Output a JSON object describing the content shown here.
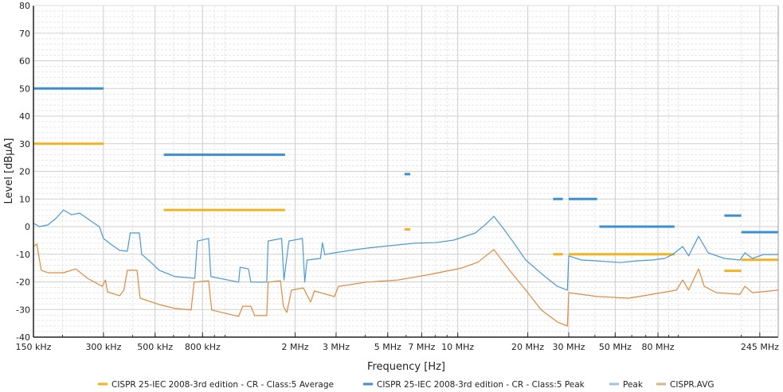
{
  "chart_data": {
    "type": "line",
    "xlabel": "Frequency [Hz]",
    "ylabel": "Level [dBµA]",
    "x_scale": "log",
    "xlim_mhz": [
      0.15,
      300
    ],
    "ylim": [
      -40,
      80
    ],
    "grid": true,
    "legend_position": "bottom",
    "y_ticks": [
      80,
      70,
      60,
      50,
      40,
      30,
      20,
      10,
      0,
      -10,
      -20,
      -30,
      -40
    ],
    "x_ticks": [
      {
        "mhz": 0.15,
        "label": "150 kHz"
      },
      {
        "mhz": 0.3,
        "label": "300 kHz"
      },
      {
        "mhz": 0.5,
        "label": "500 kHz"
      },
      {
        "mhz": 0.8,
        "label": "800 kHz"
      },
      {
        "mhz": 2,
        "label": "2 MHz"
      },
      {
        "mhz": 3,
        "label": "3 MHz"
      },
      {
        "mhz": 5,
        "label": "5 MHz"
      },
      {
        "mhz": 7,
        "label": "7 MHz"
      },
      {
        "mhz": 10,
        "label": "10 MHz"
      },
      {
        "mhz": 20,
        "label": "20 MHz"
      },
      {
        "mhz": 30,
        "label": "30 MHz"
      },
      {
        "mhz": 50,
        "label": "50 MHz"
      },
      {
        "mhz": 80,
        "label": "80 MHz"
      },
      {
        "mhz": 245,
        "label": "245 MHz"
      }
    ],
    "limit_series": [
      {
        "name": "CISPR 25-IEC 2008-3rd edition - CR - Class:5 Average",
        "color": "#f0b323",
        "segments": [
          [
            0.15,
            0.3,
            30
          ],
          [
            0.545,
            1.81,
            6
          ],
          [
            5.9,
            6.25,
            -1
          ],
          [
            25.7,
            28.3,
            -10
          ],
          [
            30,
            96,
            -10
          ],
          [
            166,
            200,
            -16
          ],
          [
            200,
            300,
            -12
          ]
        ]
      },
      {
        "name": "CISPR 25-IEC 2008-3rd edition - CR - Class:5 Peak",
        "color": "#3b8fd0",
        "segments": [
          [
            0.15,
            0.3,
            50
          ],
          [
            0.545,
            1.81,
            26
          ],
          [
            5.9,
            6.25,
            19
          ],
          [
            25.7,
            28.3,
            10
          ],
          [
            30,
            41,
            10
          ],
          [
            42,
            96,
            0
          ],
          [
            166,
            200,
            4
          ],
          [
            200,
            300,
            -2
          ]
        ]
      }
    ],
    "series": [
      {
        "name": "Peak",
        "color": "#4a9ad4",
        "legend_color": "#9cc4e4",
        "points": [
          [
            0.15,
            1.2
          ],
          [
            0.159,
            0
          ],
          [
            0.173,
            0.6
          ],
          [
            0.187,
            2.9
          ],
          [
            0.202,
            6.0
          ],
          [
            0.219,
            4.3
          ],
          [
            0.237,
            4.9
          ],
          [
            0.256,
            2.9
          ],
          [
            0.277,
            0.9
          ],
          [
            0.288,
            0
          ],
          [
            0.3,
            -4.3
          ],
          [
            0.325,
            -6.6
          ],
          [
            0.352,
            -8.6
          ],
          [
            0.38,
            -8.9
          ],
          [
            0.391,
            -2.3
          ],
          [
            0.428,
            -2.3
          ],
          [
            0.438,
            -10
          ],
          [
            0.481,
            -13
          ],
          [
            0.521,
            -15.8
          ],
          [
            0.61,
            -18.1
          ],
          [
            0.741,
            -18.7
          ],
          [
            0.76,
            -5.2
          ],
          [
            0.849,
            -4.3
          ],
          [
            0.869,
            -18.1
          ],
          [
            1.143,
            -20.1
          ],
          [
            1.16,
            -14.7
          ],
          [
            1.26,
            -15.3
          ],
          [
            1.29,
            -20.1
          ],
          [
            1.51,
            -20.1
          ],
          [
            1.53,
            -5.2
          ],
          [
            1.75,
            -4.3
          ],
          [
            1.79,
            -19.3
          ],
          [
            1.88,
            -5.2
          ],
          [
            2.15,
            -4.3
          ],
          [
            2.2,
            -20.1
          ],
          [
            2.25,
            -12.1
          ],
          [
            2.57,
            -11.5
          ],
          [
            2.62,
            -5.8
          ],
          [
            2.68,
            -10.1
          ],
          [
            2.95,
            -9.5
          ],
          [
            3.45,
            -8.6
          ],
          [
            4.05,
            -7.8
          ],
          [
            4.74,
            -7.2
          ],
          [
            5.55,
            -6.6
          ],
          [
            6.49,
            -6.0
          ],
          [
            8.0,
            -5.8
          ],
          [
            9.6,
            -4.9
          ],
          [
            11.9,
            -2.3
          ],
          [
            13.2,
            0.9
          ],
          [
            14.3,
            3.7
          ],
          [
            15.5,
            0
          ],
          [
            17.4,
            -5.8
          ],
          [
            19.6,
            -12.1
          ],
          [
            22.9,
            -17.0
          ],
          [
            26.8,
            -21.6
          ],
          [
            29.6,
            -23.0
          ],
          [
            30,
            -10.6
          ],
          [
            34.5,
            -12.1
          ],
          [
            41,
            -12.4
          ],
          [
            53,
            -13
          ],
          [
            63,
            -12.4
          ],
          [
            75,
            -12.1
          ],
          [
            86,
            -11.5
          ],
          [
            94,
            -10.1
          ],
          [
            105,
            -7.2
          ],
          [
            112,
            -10.6
          ],
          [
            125,
            -3.5
          ],
          [
            139,
            -9.5
          ],
          [
            166,
            -11.5
          ],
          [
            197,
            -12.1
          ],
          [
            208,
            -9.5
          ],
          [
            226,
            -11.5
          ],
          [
            255,
            -10.1
          ],
          [
            300,
            -10.1
          ]
        ]
      },
      {
        "name": "CISPR.AVG",
        "color": "#e08a3c",
        "legend_color": "#d8b48c",
        "points": [
          [
            0.15,
            -7.2
          ],
          [
            0.155,
            -6.3
          ],
          [
            0.162,
            -15.8
          ],
          [
            0.173,
            -16.7
          ],
          [
            0.202,
            -16.7
          ],
          [
            0.228,
            -15.3
          ],
          [
            0.256,
            -18.7
          ],
          [
            0.296,
            -21.6
          ],
          [
            0.306,
            -19.3
          ],
          [
            0.312,
            -23.6
          ],
          [
            0.352,
            -25
          ],
          [
            0.367,
            -23
          ],
          [
            0.38,
            -15.8
          ],
          [
            0.418,
            -15.8
          ],
          [
            0.431,
            -25.9
          ],
          [
            0.521,
            -28.2
          ],
          [
            0.61,
            -29.6
          ],
          [
            0.714,
            -30.2
          ],
          [
            0.736,
            -20.1
          ],
          [
            0.849,
            -19.6
          ],
          [
            0.876,
            -30.2
          ],
          [
            1.143,
            -32.5
          ],
          [
            1.19,
            -28.8
          ],
          [
            1.29,
            -28.8
          ],
          [
            1.34,
            -32.2
          ],
          [
            1.51,
            -32.2
          ],
          [
            1.53,
            -20.1
          ],
          [
            1.73,
            -19.6
          ],
          [
            1.78,
            -28.8
          ],
          [
            1.84,
            -31.1
          ],
          [
            1.93,
            -23
          ],
          [
            2.17,
            -22.2
          ],
          [
            2.33,
            -27.3
          ],
          [
            2.42,
            -23.3
          ],
          [
            2.95,
            -25.3
          ],
          [
            3.07,
            -21.6
          ],
          [
            3.45,
            -21
          ],
          [
            4.05,
            -20.1
          ],
          [
            5.55,
            -19.3
          ],
          [
            7.6,
            -17.3
          ],
          [
            10.4,
            -15
          ],
          [
            12.2,
            -12.9
          ],
          [
            14.3,
            -8.3
          ],
          [
            16.7,
            -15.8
          ],
          [
            19.6,
            -23
          ],
          [
            22.9,
            -30.2
          ],
          [
            26.8,
            -34.5
          ],
          [
            29.6,
            -36
          ],
          [
            30,
            -23.9
          ],
          [
            41,
            -25.3
          ],
          [
            58,
            -25.9
          ],
          [
            75,
            -24.5
          ],
          [
            98,
            -23
          ],
          [
            105,
            -19.3
          ],
          [
            112,
            -23
          ],
          [
            125,
            -15.3
          ],
          [
            133,
            -21.6
          ],
          [
            152,
            -23.9
          ],
          [
            197,
            -24.5
          ],
          [
            208,
            -21.6
          ],
          [
            226,
            -23.9
          ],
          [
            300,
            -23
          ]
        ]
      }
    ]
  }
}
